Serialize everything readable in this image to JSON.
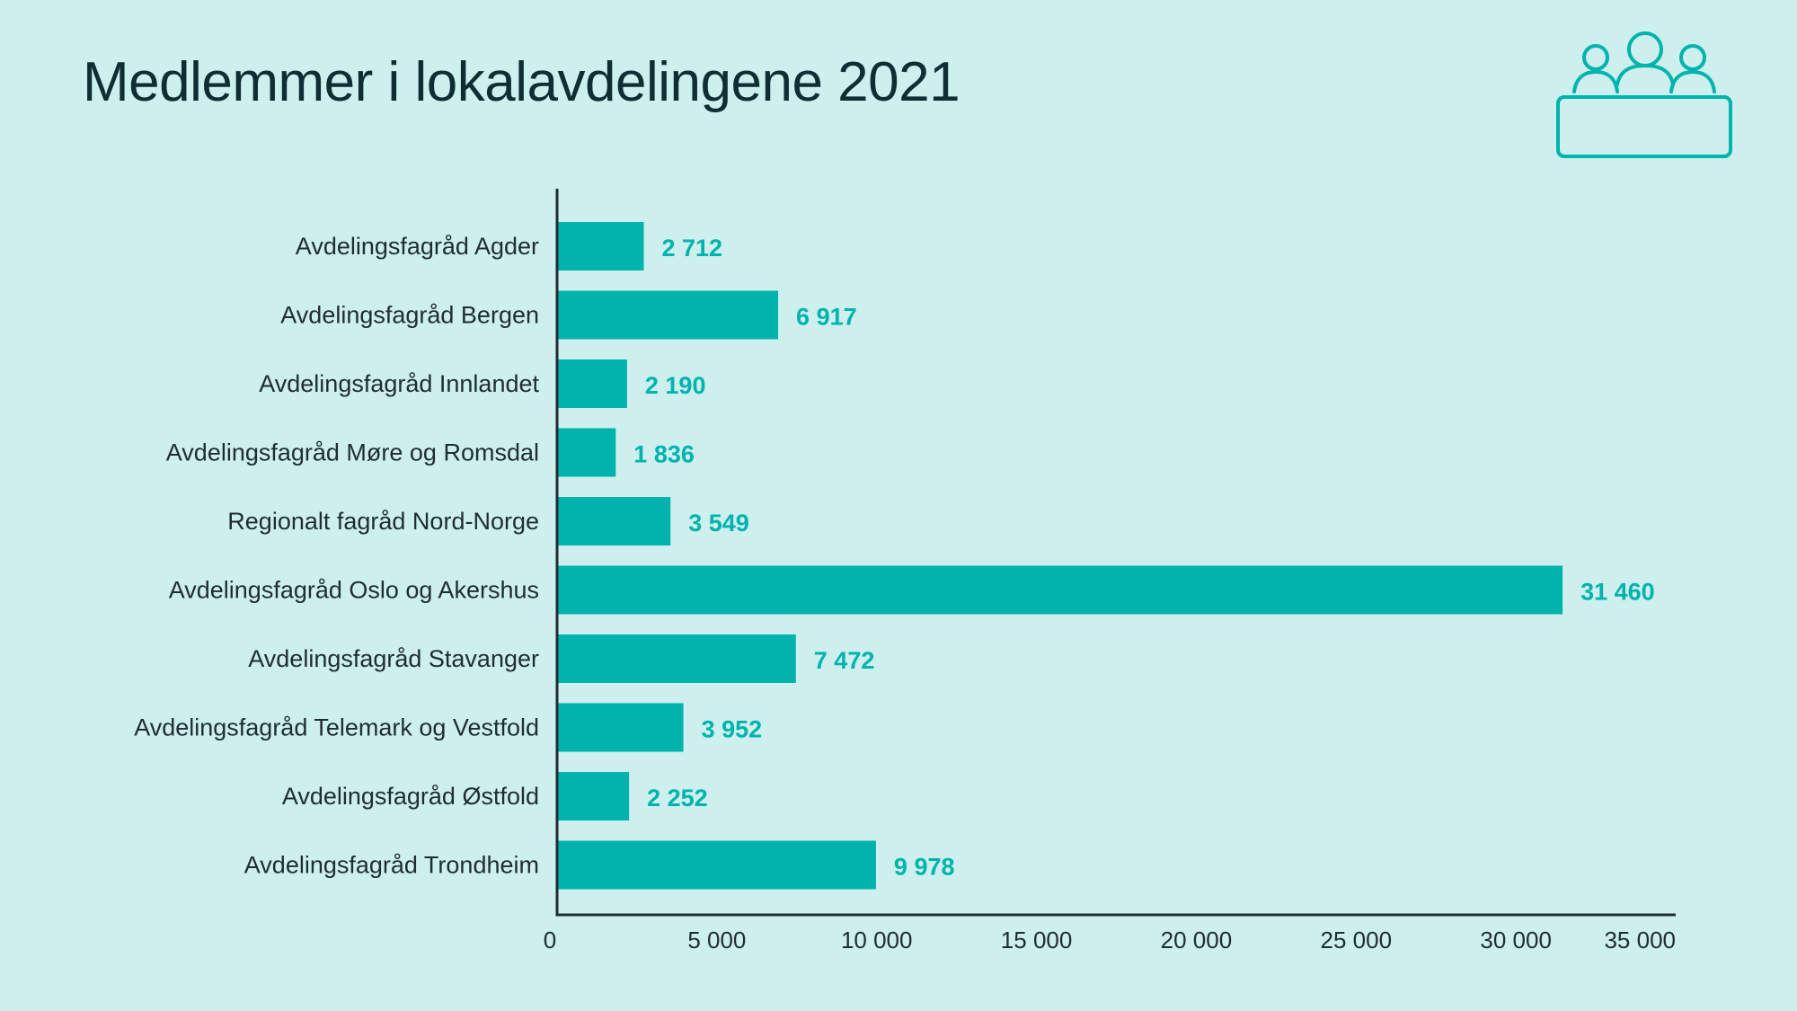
{
  "page": {
    "title": "Medlemmer i lokalavdelingene 2021",
    "icon": "people-at-table-icon"
  },
  "colors": {
    "background": "#cdefee",
    "bar": "#00b3ad",
    "value_label": "#00b3ad",
    "title": "#0f2d33",
    "text": "#1f2d33",
    "axis": "#1f2d33",
    "icon": "#00b3ad"
  },
  "chart_data": {
    "type": "bar",
    "orientation": "horizontal",
    "title": "Medlemmer i lokalavdelingene 2021",
    "xlabel": "",
    "ylabel": "",
    "xlim": [
      0,
      35000
    ],
    "grid": false,
    "categories": [
      "Avdelingsfagråd Agder",
      "Avdelingsfagråd Bergen",
      "Avdelingsfagråd Innlandet",
      "Avdelingsfagråd Møre og Romsdal",
      "Regionalt fagråd Nord-Norge",
      "Avdelingsfagråd Oslo og Akershus",
      "Avdelingsfagråd Stavanger",
      "Avdelingsfagråd Telemark og Vestfold",
      "Avdelingsfagråd Østfold",
      "Avdelingsfagråd Trondheim"
    ],
    "values": [
      2712,
      6917,
      2190,
      1836,
      3549,
      31460,
      7472,
      3952,
      2252,
      9978
    ],
    "value_labels": [
      "2 712",
      "6 917",
      "2 190",
      "1 836",
      "3 549",
      "31 460",
      "7 472",
      "3 952",
      "2 252",
      "9 978"
    ],
    "x_ticks": [
      0,
      5000,
      10000,
      15000,
      20000,
      25000,
      30000,
      35000
    ],
    "x_tick_labels": [
      "0",
      "5 000",
      "10 000",
      "15 000",
      "20 000",
      "25 000",
      "30 000",
      "35 000"
    ]
  }
}
